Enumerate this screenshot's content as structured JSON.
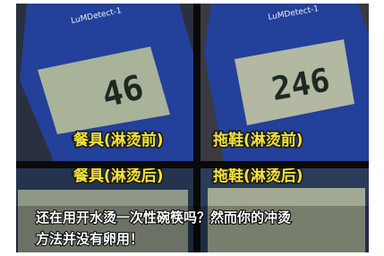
{
  "panels": [
    {
      "device": "LuMDetect-1",
      "reading": "46",
      "label": "餐具(淋烫前)"
    },
    {
      "device": "LuMDetect-1",
      "reading": "246",
      "label": "拖鞋(淋烫前)"
    },
    {
      "label": "餐具(淋烫后)"
    },
    {
      "label": "拖鞋(淋烫后)"
    }
  ],
  "caption": {
    "line1": "还在用开水烫一次性碗筷吗？然而你的冲烫",
    "line2": "方法并没有卵用！"
  }
}
